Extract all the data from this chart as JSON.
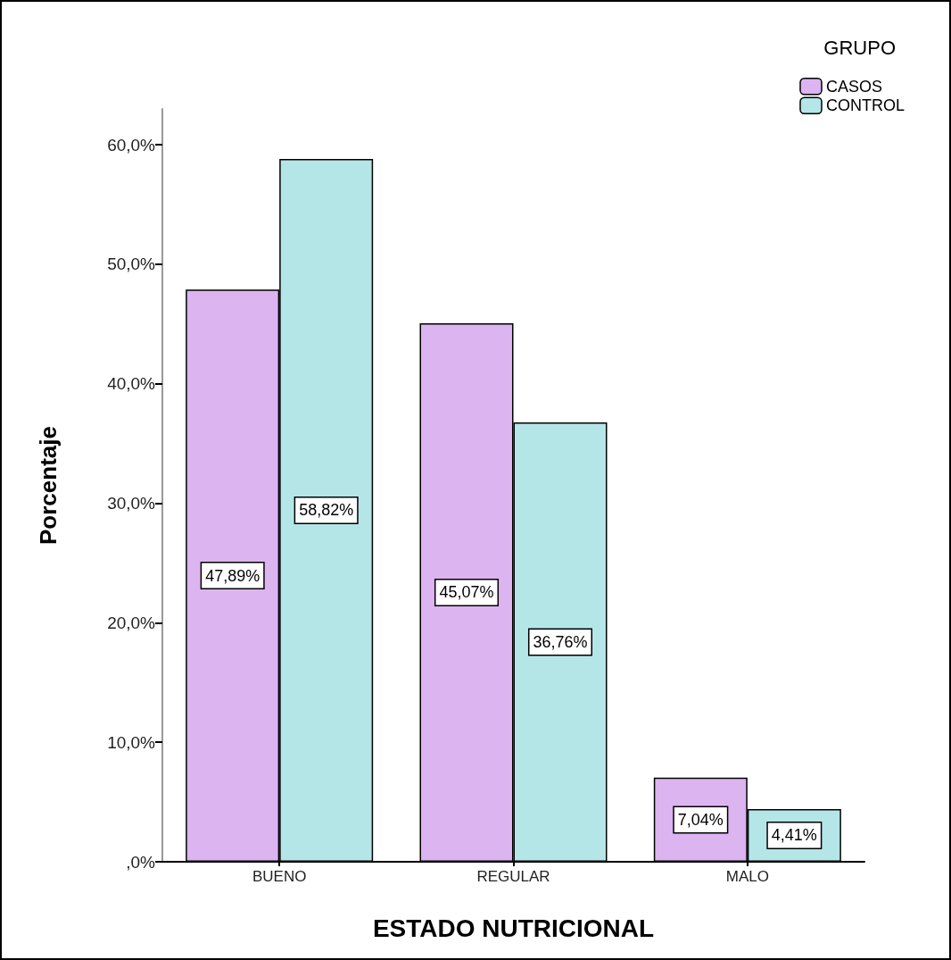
{
  "chart_data": {
    "type": "bar",
    "xlabel": "ESTADO NUTRICIONAL",
    "ylabel": "Porcentaje",
    "legend_title": "GRUPO",
    "categories": [
      "BUENO",
      "REGULAR",
      "MALO"
    ],
    "series": [
      {
        "name": "CASOS",
        "color": "#dcb4f0",
        "values": [
          47.89,
          45.07,
          7.04
        ],
        "value_labels": [
          "47,89%",
          "45,07%",
          "7,04%"
        ]
      },
      {
        "name": "CONTROL",
        "color": "#b4e6e8",
        "values": [
          58.82,
          36.76,
          4.41
        ],
        "value_labels": [
          "58,82%",
          "36,76%",
          "4,41%"
        ]
      }
    ],
    "ylim": [
      0,
      63
    ],
    "yticks": [
      {
        "value": 0,
        "label": ",0%"
      },
      {
        "value": 10,
        "label": "10,0%"
      },
      {
        "value": 20,
        "label": "20,0%"
      },
      {
        "value": 30,
        "label": "30,0%"
      },
      {
        "value": 40,
        "label": "40,0%"
      },
      {
        "value": 50,
        "label": "50,0%"
      },
      {
        "value": 60,
        "label": "60,0%"
      }
    ],
    "grid": false,
    "legend": "top right"
  }
}
